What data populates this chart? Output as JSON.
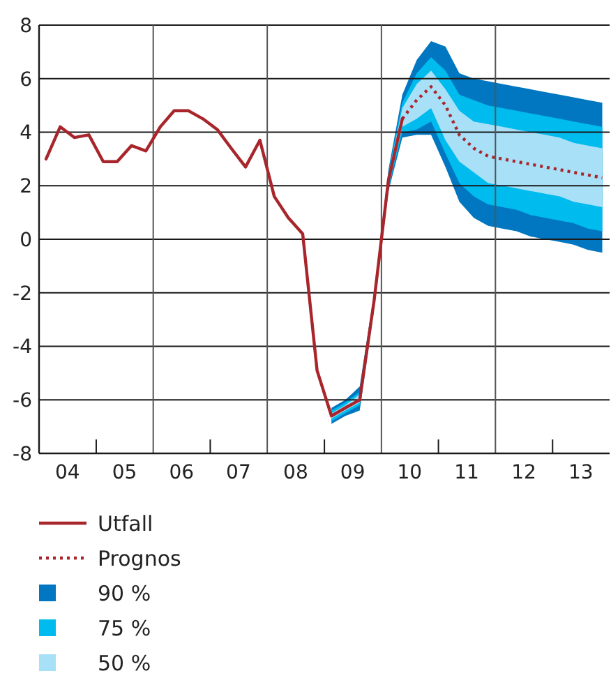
{
  "chart_data": {
    "type": "line",
    "xlim": [
      "2004-01-01",
      "2014-01-01"
    ],
    "ylim": [
      -8,
      8
    ],
    "yticks": [
      -8,
      -6,
      -4,
      -2,
      0,
      2,
      4,
      6,
      8
    ],
    "xticks": [
      {
        "value": "2004-07-01",
        "label": "04"
      },
      {
        "value": "2005-07-01",
        "label": "05"
      },
      {
        "value": "2006-07-01",
        "label": "06"
      },
      {
        "value": "2007-07-01",
        "label": "07"
      },
      {
        "value": "2008-07-01",
        "label": "08"
      },
      {
        "value": "2009-07-01",
        "label": "09"
      },
      {
        "value": "2010-07-01",
        "label": "10"
      },
      {
        "value": "2011-07-01",
        "label": "11"
      },
      {
        "value": "2012-07-01",
        "label": "12"
      },
      {
        "value": "2013-07-01",
        "label": "13"
      },
      {
        "value": "2005-01-01",
        "label": null
      },
      {
        "value": "2007-01-01",
        "label": null
      },
      {
        "value": "2009-01-01",
        "label": null
      },
      {
        "value": "2011-01-01",
        "label": null
      },
      {
        "value": "2013-01-01",
        "label": null
      }
    ],
    "grid": "y",
    "legend": "bottom",
    "ref_lines": [
      {
        "axis": "x",
        "value": "2006-01-01",
        "color": "#555555"
      },
      {
        "axis": "x",
        "value": "2008-01-01",
        "color": "#555555"
      },
      {
        "axis": "x",
        "value": "2010-01-01",
        "color": "#555555"
      },
      {
        "axis": "x",
        "value": "2012-01-01",
        "color": "#555555"
      }
    ],
    "series": [
      {
        "name": "90 %",
        "type": "area",
        "color": "#0077c0",
        "x": [
          "2009-02-15",
          "2009-05-15",
          "2009-08-15",
          "2009-11-15",
          "2010-02-15",
          "2010-05-15",
          "2010-08-15",
          "2010-11-15",
          "2011-02-15",
          "2011-05-15",
          "2011-08-15",
          "2011-11-15",
          "2012-02-15",
          "2012-05-15",
          "2012-08-15",
          "2012-11-15",
          "2013-02-15",
          "2013-05-15",
          "2013-08-15",
          "2013-11-15"
        ],
        "values": [
          null,
          null,
          null,
          null,
          null,
          null,
          null,
          null,
          null,
          null,
          null,
          null,
          null,
          null,
          null,
          null,
          null,
          null,
          null,
          null
        ],
        "upper": [
          -6.3,
          -6.0,
          -5.5,
          -2.0,
          2.6,
          5.4,
          6.7,
          7.4,
          7.2,
          6.2,
          6.0,
          5.9,
          5.8,
          5.7,
          5.6,
          5.5,
          5.4,
          5.3,
          5.2,
          5.1
        ],
        "lower": [
          -6.9,
          -6.6,
          -6.4,
          -2.6,
          1.8,
          3.8,
          3.9,
          3.9,
          2.7,
          1.4,
          0.8,
          0.5,
          0.4,
          0.3,
          0.1,
          0.0,
          -0.1,
          -0.2,
          -0.4,
          -0.5
        ]
      },
      {
        "name": "75 %",
        "type": "area",
        "color": "#00bbee",
        "x": [
          "2009-02-15",
          "2009-05-15",
          "2009-08-15",
          "2009-11-15",
          "2010-02-15",
          "2010-05-15",
          "2010-08-15",
          "2010-11-15",
          "2011-02-15",
          "2011-05-15",
          "2011-08-15",
          "2011-11-15",
          "2012-02-15",
          "2012-05-15",
          "2012-08-15",
          "2012-11-15",
          "2013-02-15",
          "2013-05-15",
          "2013-08-15",
          "2013-11-15"
        ],
        "values": [
          null,
          null,
          null,
          null,
          null,
          null,
          null,
          null,
          null,
          null,
          null,
          null,
          null,
          null,
          null,
          null,
          null,
          null,
          null,
          null
        ],
        "upper": [
          -6.4,
          -6.1,
          -5.7,
          -2.1,
          2.5,
          5.1,
          6.2,
          6.8,
          6.3,
          5.4,
          5.2,
          5.0,
          4.9,
          4.8,
          4.7,
          4.6,
          4.5,
          4.4,
          4.3,
          4.2
        ],
        "lower": [
          -6.8,
          -6.5,
          -6.2,
          -2.5,
          1.9,
          4.0,
          4.1,
          4.4,
          3.2,
          2.1,
          1.6,
          1.3,
          1.2,
          1.1,
          0.9,
          0.8,
          0.7,
          0.6,
          0.4,
          0.3
        ]
      },
      {
        "name": "50 %",
        "type": "area",
        "color": "#a8e0f8",
        "x": [
          "2009-02-15",
          "2009-05-15",
          "2009-08-15",
          "2009-11-15",
          "2010-02-15",
          "2010-05-15",
          "2010-08-15",
          "2010-11-15",
          "2011-02-15",
          "2011-05-15",
          "2011-08-15",
          "2011-11-15",
          "2012-02-15",
          "2012-05-15",
          "2012-08-15",
          "2012-11-15",
          "2013-02-15",
          "2013-05-15",
          "2013-08-15",
          "2013-11-15"
        ],
        "values": [
          null,
          null,
          null,
          null,
          null,
          null,
          null,
          null,
          null,
          null,
          null,
          null,
          null,
          null,
          null,
          null,
          null,
          null,
          null,
          null
        ],
        "upper": [
          -6.5,
          -6.2,
          -5.8,
          -2.2,
          2.4,
          4.9,
          5.8,
          6.3,
          5.6,
          4.8,
          4.4,
          4.3,
          4.2,
          4.1,
          4.0,
          3.9,
          3.8,
          3.6,
          3.5,
          3.4
        ],
        "lower": [
          -6.7,
          -6.4,
          -6.1,
          -2.4,
          2.0,
          4.2,
          4.5,
          4.9,
          3.7,
          2.9,
          2.5,
          2.1,
          2.0,
          1.9,
          1.8,
          1.7,
          1.6,
          1.4,
          1.3,
          1.2
        ]
      },
      {
        "name": "Utfall",
        "type": "line",
        "color": "#a8262b",
        "line_style": "solid",
        "x": [
          "2004-02-15",
          "2004-05-15",
          "2004-08-15",
          "2004-11-15",
          "2005-02-15",
          "2005-05-15",
          "2005-08-15",
          "2005-11-15",
          "2006-02-15",
          "2006-05-15",
          "2006-08-15",
          "2006-11-15",
          "2007-02-15",
          "2007-05-15",
          "2007-08-15",
          "2007-11-15",
          "2008-02-15",
          "2008-05-15",
          "2008-08-15",
          "2008-11-15",
          "2009-02-15",
          "2009-05-15",
          "2009-08-15",
          "2009-11-15",
          "2010-02-15",
          "2010-05-15"
        ],
        "values": [
          3.0,
          4.2,
          3.8,
          3.9,
          2.9,
          2.9,
          3.5,
          3.3,
          4.2,
          4.8,
          4.8,
          4.5,
          4.1,
          3.4,
          2.7,
          3.7,
          1.6,
          0.8,
          0.2,
          -4.9,
          -6.6,
          -6.3,
          -6.0,
          -2.3,
          2.2,
          4.5
        ]
      },
      {
        "name": "Prognos",
        "type": "line",
        "color": "#a8262b",
        "line_style": "dotted",
        "x": [
          "2010-05-15",
          "2010-08-15",
          "2010-11-15",
          "2011-02-15",
          "2011-05-15",
          "2011-08-15",
          "2011-11-15",
          "2012-02-15",
          "2012-05-15",
          "2012-08-15",
          "2012-11-15",
          "2013-02-15",
          "2013-05-15",
          "2013-08-15",
          "2013-11-15"
        ],
        "values": [
          4.5,
          5.2,
          5.7,
          5.0,
          3.9,
          3.4,
          3.1,
          3.0,
          2.9,
          2.8,
          2.7,
          2.6,
          2.5,
          2.4,
          2.3
        ]
      }
    ]
  }
}
